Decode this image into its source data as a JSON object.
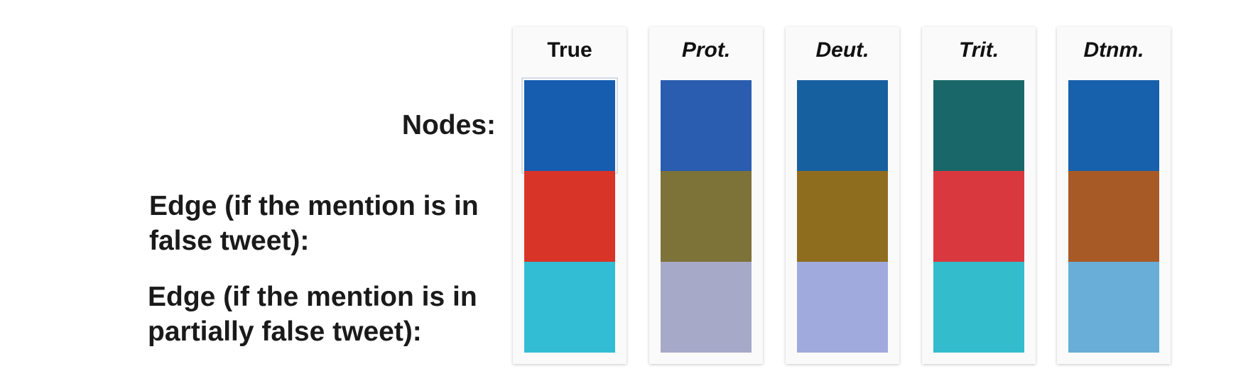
{
  "row_labels": {
    "nodes": "Nodes:",
    "edge_false_line1": "Edge (if the mention is in",
    "edge_false_line2": "false tweet):",
    "edge_partial_line1": "Edge (if the mention is in",
    "edge_partial_line2": "partially false tweet):"
  },
  "columns": [
    {
      "title": "True",
      "italic": false,
      "colors": [
        "#165db0",
        "#d83428",
        "#33bdd5"
      ]
    },
    {
      "title": "Prot.",
      "italic": true,
      "colors": [
        "#2a5daf",
        "#7d7238",
        "#a7a9c9"
      ]
    },
    {
      "title": "Deut.",
      "italic": true,
      "colors": [
        "#1760a0",
        "#8f6d1e",
        "#a0aadd"
      ]
    },
    {
      "title": "Trit.",
      "italic": true,
      "colors": [
        "#196768",
        "#d9383e",
        "#33bdcc"
      ]
    },
    {
      "title": "Dtnm.",
      "italic": true,
      "colors": [
        "#1760ab",
        "#a85a26",
        "#69aed8"
      ]
    }
  ]
}
